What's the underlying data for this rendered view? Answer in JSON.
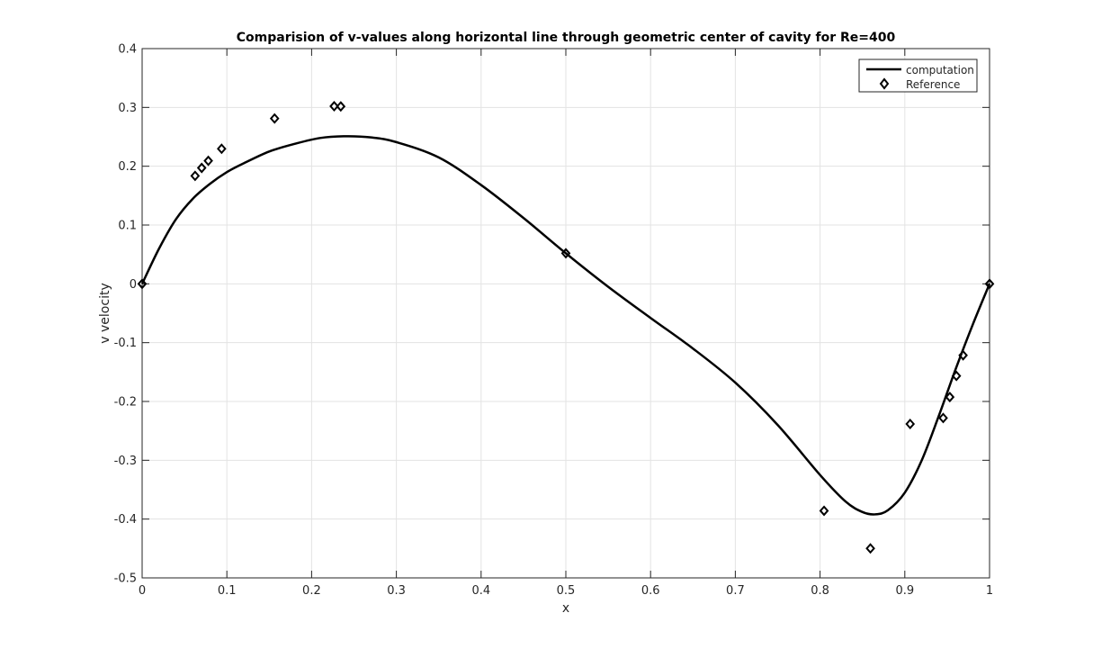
{
  "chart_data": {
    "type": "line",
    "title": "Comparision of v-values along horizontal line through geometric center of cavity for Re=400",
    "xlabel": "x",
    "ylabel": "v velocity",
    "xlim": [
      0,
      1
    ],
    "ylim": [
      -0.5,
      0.4
    ],
    "grid": true,
    "legend_position": "top-right",
    "x_ticks": [
      "0",
      "0.1",
      "0.2",
      "0.3",
      "0.4",
      "0.5",
      "0.6",
      "0.7",
      "0.8",
      "0.9",
      "1"
    ],
    "y_ticks": [
      "-0.5",
      "-0.4",
      "-0.3",
      "-0.2",
      "-0.1",
      "0",
      "0.1",
      "0.2",
      "0.3",
      "0.4"
    ],
    "series": [
      {
        "name": "computation",
        "style": "line",
        "color": "#000000",
        "x": [
          0,
          0.02,
          0.04,
          0.06,
          0.08,
          0.1,
          0.12,
          0.15,
          0.18,
          0.21,
          0.24,
          0.27,
          0.3,
          0.35,
          0.4,
          0.45,
          0.5,
          0.55,
          0.6,
          0.65,
          0.7,
          0.75,
          0.8,
          0.83,
          0.85,
          0.865,
          0.88,
          0.9,
          0.92,
          0.94,
          0.96,
          0.98,
          1.0
        ],
        "y": [
          0,
          0.06,
          0.11,
          0.145,
          0.17,
          0.19,
          0.205,
          0.225,
          0.238,
          0.248,
          0.251,
          0.249,
          0.241,
          0.215,
          0.168,
          0.112,
          0.052,
          -0.005,
          -0.058,
          -0.11,
          -0.168,
          -0.24,
          -0.325,
          -0.37,
          -0.388,
          -0.392,
          -0.385,
          -0.355,
          -0.3,
          -0.225,
          -0.145,
          -0.07,
          0
        ]
      },
      {
        "name": "Reference",
        "style": "marker",
        "marker": "diamond",
        "color": "#000000",
        "x": [
          0,
          0.0625,
          0.0703,
          0.0781,
          0.0938,
          0.1563,
          0.2266,
          0.2344,
          0.5,
          0.8047,
          0.8594,
          0.9063,
          0.9453,
          0.9531,
          0.9609,
          0.9688,
          1.0
        ],
        "y": [
          0,
          0.1836,
          0.1971,
          0.2092,
          0.2297,
          0.2812,
          0.302,
          0.3017,
          0.0519,
          -0.3859,
          -0.4499,
          -0.2383,
          -0.2281,
          -0.1925,
          -0.1566,
          -0.1215,
          0
        ]
      }
    ]
  }
}
